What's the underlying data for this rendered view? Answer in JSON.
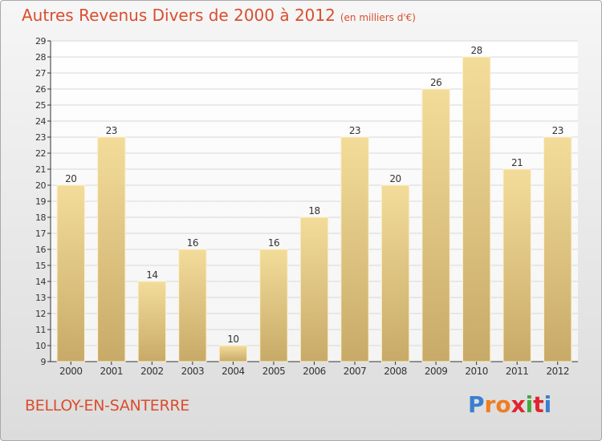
{
  "header": {
    "title": "Autres Revenus Divers de 2000 à 2012",
    "subtitle": "(en milliers d'€)"
  },
  "footer": {
    "commune": "BELLOY-EN-SANTERRE",
    "logo_letters": [
      "P",
      "r",
      "o",
      "x",
      "i",
      "t",
      "i"
    ],
    "logo_colors": [
      "#3a7fd0",
      "#ef7d22",
      "#ef7d22",
      "#e0252e",
      "#44a83c",
      "#e0252e",
      "#3a7fd0"
    ]
  },
  "chart_data": {
    "type": "bar",
    "categories": [
      "2000",
      "2001",
      "2002",
      "2003",
      "2004",
      "2005",
      "2006",
      "2007",
      "2008",
      "2009",
      "2010",
      "2011",
      "2012"
    ],
    "values": [
      20,
      23,
      14,
      16,
      10,
      16,
      18,
      23,
      20,
      26,
      28,
      21,
      23
    ],
    "ylim": [
      9,
      29
    ],
    "yticks": [
      9,
      10,
      11,
      12,
      13,
      14,
      15,
      16,
      17,
      18,
      19,
      20,
      21,
      22,
      23,
      24,
      25,
      26,
      27,
      28,
      29
    ],
    "grid": true,
    "colors": {
      "bar_light": "#f3dc9a",
      "bar_dark": "#c8aa68",
      "grid": "#d8d8d8",
      "axis": "#333333"
    }
  }
}
